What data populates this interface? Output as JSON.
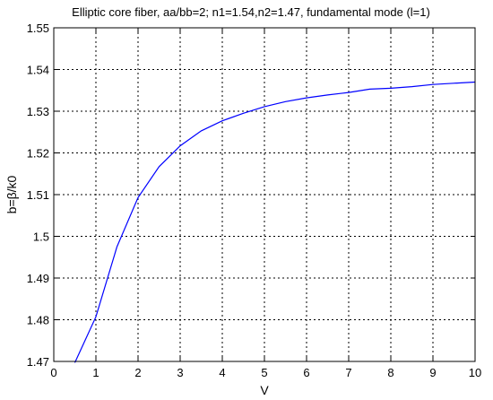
{
  "chart_data": {
    "type": "line",
    "title": "Elliptic core fiber, aa/bb=2; n1=1.54,n2=1.47, fundamental mode (l=1)",
    "xlabel": "V",
    "ylabel": "b=β/k0",
    "xlim": [
      0,
      10
    ],
    "ylim": [
      1.47,
      1.55
    ],
    "grid": true,
    "x_ticks": [
      "0",
      "1",
      "2",
      "3",
      "4",
      "5",
      "6",
      "7",
      "8",
      "9",
      "10"
    ],
    "y_ticks": [
      "1.47",
      "1.48",
      "1.49",
      "1.5",
      "1.51",
      "1.52",
      "1.53",
      "1.54",
      "1.55"
    ],
    "series": [
      {
        "color": "#0000ff",
        "x": [
          0.5,
          1.0,
          1.5,
          2.0,
          2.5,
          3.0,
          3.5,
          4.0,
          4.5,
          5.0,
          5.5,
          6.0,
          6.5,
          7.0,
          7.5,
          8.0,
          8.5,
          9.0,
          9.5,
          10.0
        ],
        "y": [
          1.4697,
          1.4807,
          1.4975,
          1.5093,
          1.5167,
          1.5217,
          1.5253,
          1.5277,
          1.5295,
          1.5311,
          1.5323,
          1.5332,
          1.5339,
          1.5345,
          1.5353,
          1.5355,
          1.5359,
          1.5364,
          1.5367,
          1.537
        ]
      }
    ]
  }
}
